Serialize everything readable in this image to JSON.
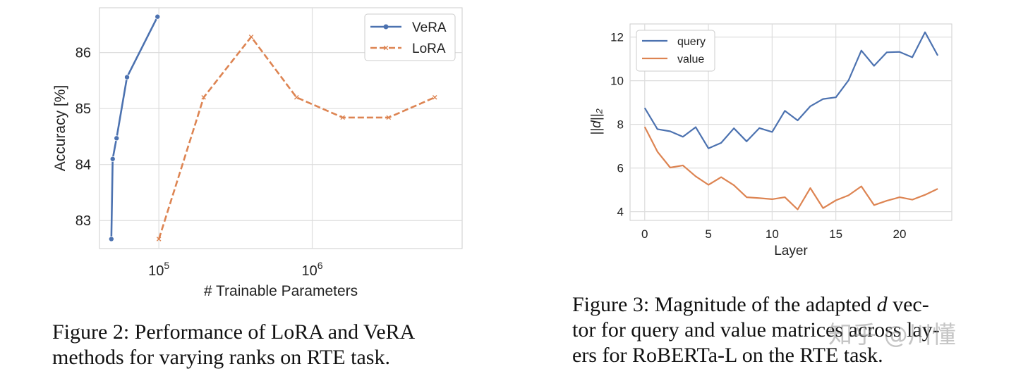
{
  "chart_data": [
    {
      "type": "line",
      "xscale": "log",
      "xlabel": "# Trainable Parameters",
      "ylabel": "Accuracy [%]",
      "xlim": [
        41000,
        9500000
      ],
      "ylim": [
        82.5,
        86.8
      ],
      "yticks": [
        83,
        84,
        85,
        86
      ],
      "xticks": [
        {
          "value": 100000,
          "base": "10",
          "exp": "5"
        },
        {
          "value": 1000000,
          "base": "10",
          "exp": "6"
        }
      ],
      "legend_position": "top-right",
      "series": [
        {
          "name": "VeRA",
          "color": "#4c72b0",
          "style": "solid",
          "marker": "circle",
          "x": [
            49000,
            50000,
            53000,
            62000,
            98000
          ],
          "y": [
            82.67,
            84.1,
            84.47,
            85.56,
            86.64
          ]
        },
        {
          "name": "LoRA",
          "color": "#dd8452",
          "style": "dashed",
          "marker": "x",
          "x": [
            100000,
            196000,
            400000,
            790000,
            1580000,
            3150000,
            6300000
          ],
          "y": [
            82.67,
            85.2,
            86.28,
            85.2,
            84.84,
            84.84,
            85.2
          ]
        }
      ]
    },
    {
      "type": "line",
      "xlabel": "Layer",
      "ylabel": "||d||₂",
      "xlim": [
        -1.15,
        24.1
      ],
      "ylim": [
        3.6,
        12.6
      ],
      "xticks": [
        0,
        5,
        10,
        15,
        20
      ],
      "yticks": [
        4,
        6,
        8,
        10,
        12
      ],
      "legend_position": "top-left",
      "series": [
        {
          "name": "query",
          "color": "#4c72b0",
          "x": [
            0,
            1,
            2,
            3,
            4,
            5,
            6,
            7,
            8,
            9,
            10,
            11,
            12,
            13,
            14,
            15,
            16,
            17,
            18,
            19,
            20,
            21,
            22,
            23
          ],
          "y": [
            8.75,
            7.78,
            7.68,
            7.43,
            7.87,
            6.9,
            7.15,
            7.82,
            7.22,
            7.83,
            7.65,
            8.62,
            8.18,
            8.83,
            9.16,
            9.24,
            10.02,
            11.38,
            10.68,
            11.3,
            11.32,
            11.07,
            12.22,
            11.15
          ]
        },
        {
          "name": "value",
          "color": "#dd8452",
          "x": [
            0,
            1,
            2,
            3,
            4,
            5,
            6,
            7,
            8,
            9,
            10,
            11,
            12,
            13,
            14,
            15,
            16,
            17,
            18,
            19,
            20,
            21,
            22,
            23
          ],
          "y": [
            7.88,
            6.75,
            6.02,
            6.12,
            5.62,
            5.23,
            5.58,
            5.21,
            4.66,
            4.62,
            4.57,
            4.66,
            4.1,
            5.08,
            4.16,
            4.52,
            4.75,
            5.16,
            4.3,
            4.5,
            4.66,
            4.55,
            4.77,
            5.05
          ]
        }
      ]
    }
  ],
  "captions": {
    "fig2": {
      "line1": "Figure 2: Performance of LoRA and VeRA",
      "line2": "methods for varying ranks on RTE task."
    },
    "fig3": {
      "line1_pre": "Figure 3: Magnitude of the adapted ",
      "line1_var": "d",
      "line1_post": " vec-",
      "line2": "tor for query and value matrices across lay-",
      "line3": "ers for RoBERTa-L on the RTE task."
    }
  },
  "watermark": "知乎 @川懂"
}
